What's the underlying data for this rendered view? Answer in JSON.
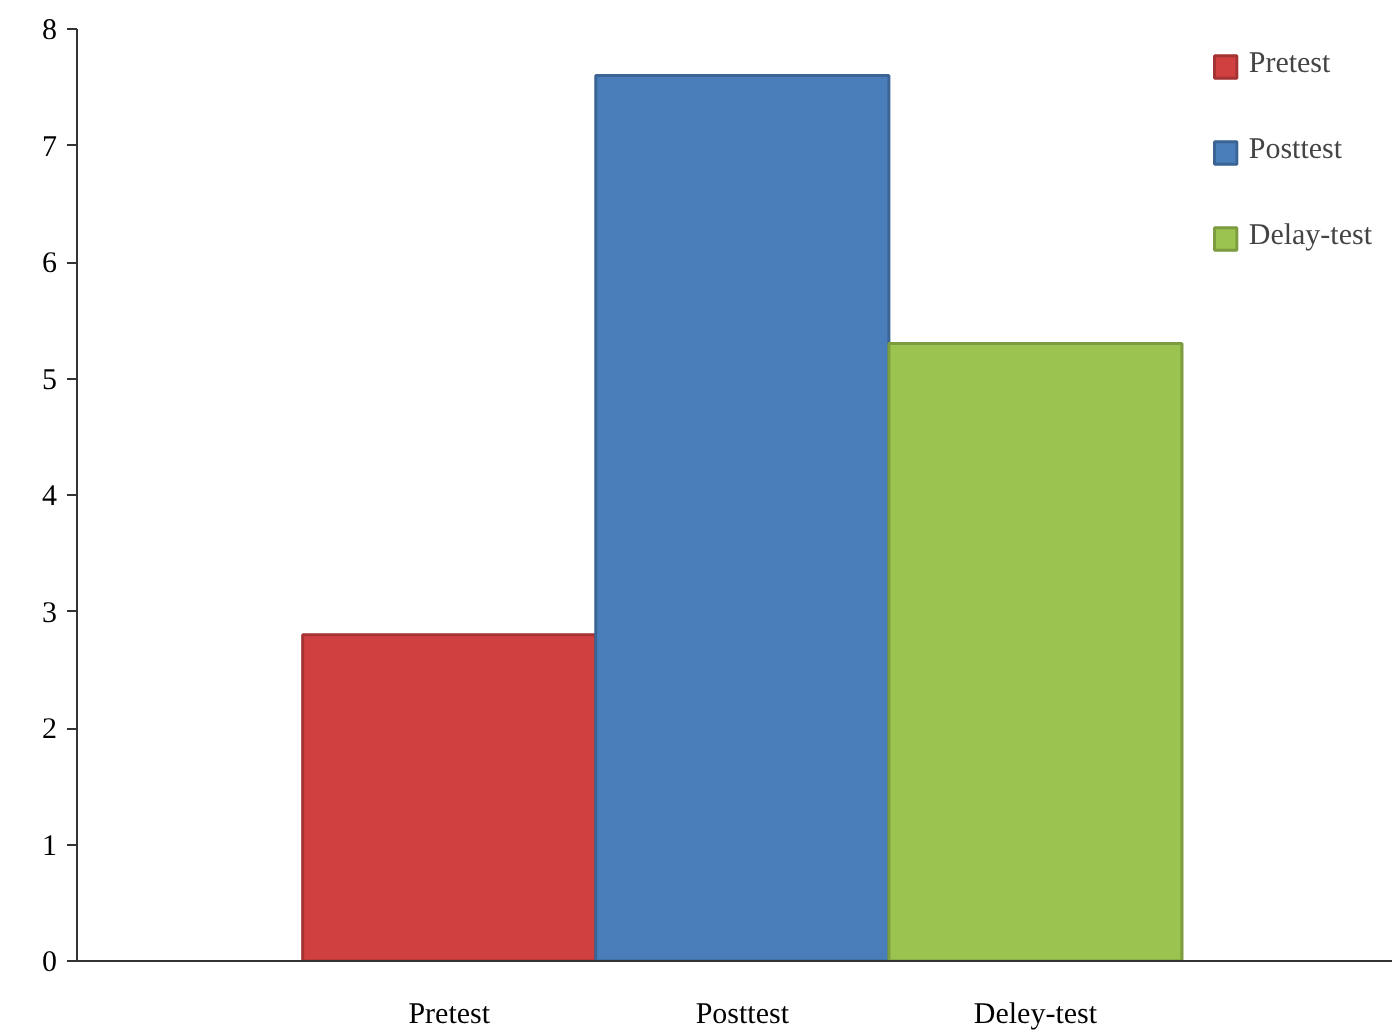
{
  "chart_data": {
    "type": "bar",
    "categories": [
      "Pretest",
      "Posttest",
      "Deley-test"
    ],
    "series": [
      {
        "name": "Pretest",
        "color": "#d04040",
        "values": [
          2.8,
          null,
          null
        ]
      },
      {
        "name": "Posttest",
        "color": "#4a7ebb",
        "values": [
          null,
          7.6,
          null
        ]
      },
      {
        "name": "Delay-test",
        "color": "#9bc34f",
        "values": [
          null,
          null,
          5.3
        ]
      }
    ],
    "ylim": [
      0,
      8
    ],
    "yticks": [
      0,
      1,
      2,
      3,
      4,
      5,
      6,
      7,
      8
    ],
    "grid": false,
    "legend": "top right"
  }
}
